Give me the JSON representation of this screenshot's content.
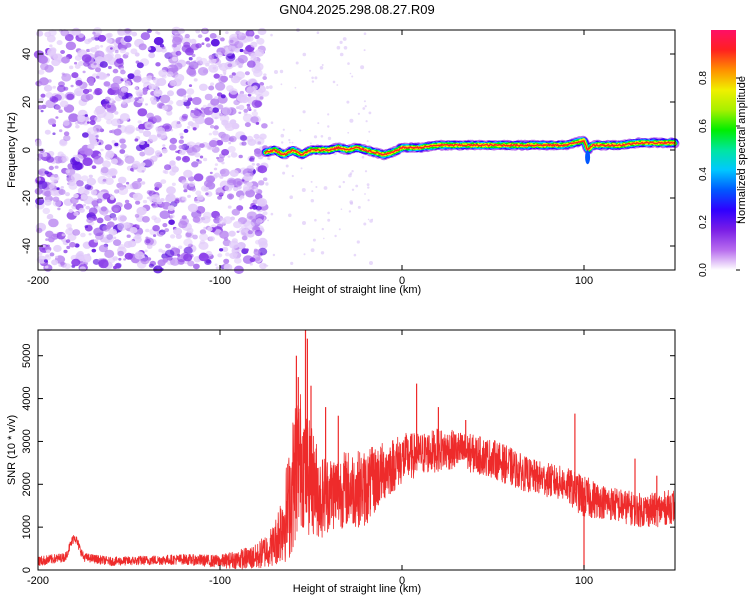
{
  "figure": {
    "title": "GN04.2025.298.08.27.R09"
  },
  "chart_data": [
    {
      "type": "heatmap",
      "name": "spectrogram",
      "xlabel": "Height of straight line (km)",
      "ylabel": "Frequency (Hz)",
      "xlim": [
        -200,
        150
      ],
      "ylim": [
        -50,
        50
      ],
      "xticks": [
        -200,
        -100,
        0,
        100
      ],
      "yticks": [
        -40,
        -20,
        0,
        20,
        40
      ],
      "noise_region_x": [
        -200,
        -75
      ],
      "ridge": {
        "x": [
          -75,
          -70,
          -65,
          -60,
          -55,
          -50,
          -45,
          -40,
          -35,
          -30,
          -25,
          -20,
          -15,
          -10,
          -5,
          0,
          10,
          20,
          40,
          60,
          80,
          90,
          95,
          100,
          102,
          105,
          110,
          120,
          130,
          140,
          150
        ],
        "freq": [
          -1,
          0,
          -2,
          0,
          -2,
          0,
          0,
          0,
          1,
          0,
          1,
          0,
          -1,
          -2,
          -1,
          1,
          1,
          2,
          2,
          2,
          2,
          2,
          3,
          4,
          0,
          2,
          2,
          2,
          3,
          3,
          3
        ]
      },
      "colorbar": {
        "label": "Normalized spectral amplitude",
        "range": [
          0.0,
          1.0
        ],
        "ticks": [
          "0.0",
          "0.2",
          "0.4",
          "0.6",
          "0.8"
        ],
        "tick_values": [
          0.0,
          0.2,
          0.4,
          0.6,
          0.8
        ],
        "colors": [
          "#ffffff",
          "#b86dee",
          "#7a1ee6",
          "#2f00ff",
          "#0058ff",
          "#00c8ff",
          "#00e6a0",
          "#00ee00",
          "#a8f000",
          "#f0f000",
          "#ff9000",
          "#ff2020",
          "#ff0f66"
        ]
      }
    },
    {
      "type": "line",
      "name": "snr",
      "xlabel": "Height of straight line (km)",
      "ylabel": "SNR (10 * v/v)",
      "xlim": [
        -200,
        150
      ],
      "ylim": [
        0,
        5600
      ],
      "xticks": [
        -200,
        -100,
        0,
        100
      ],
      "yticks": [
        0,
        1000,
        2000,
        3000,
        4000,
        5000
      ],
      "line_color": "#ee2b2b",
      "envelope": {
        "x": [
          -200,
          -185,
          -180,
          -175,
          -160,
          -120,
          -100,
          -80,
          -70,
          -62,
          -58,
          -55,
          -52,
          -48,
          -45,
          -40,
          -30,
          -20,
          -10,
          0,
          10,
          20,
          30,
          40,
          50,
          60,
          70,
          80,
          90,
          100,
          110,
          120,
          130,
          140,
          150
        ],
        "mid": [
          200,
          300,
          800,
          300,
          200,
          250,
          200,
          300,
          600,
          1500,
          2500,
          2600,
          2200,
          2000,
          1700,
          1800,
          1900,
          1900,
          2300,
          2600,
          2700,
          2800,
          2800,
          2700,
          2600,
          2400,
          2200,
          2100,
          2000,
          1700,
          1600,
          1500,
          1400,
          1400,
          1500
        ],
        "amp": [
          120,
          100,
          120,
          100,
          100,
          120,
          150,
          300,
          500,
          1300,
          1800,
          1600,
          1400,
          1200,
          1000,
          900,
          900,
          900,
          700,
          600,
          500,
          500,
          450,
          450,
          450,
          450,
          400,
          400,
          400,
          500,
          400,
          400,
          400,
          400,
          400
        ]
      },
      "spikes": [
        {
          "x": -58,
          "y": 5000
        },
        {
          "x": -57,
          "y": 4500
        },
        {
          "x": -53,
          "y": 5600
        },
        {
          "x": -52,
          "y": 5400
        },
        {
          "x": -50,
          "y": 4300
        },
        {
          "x": -42,
          "y": 3800
        },
        {
          "x": -35,
          "y": 3600
        },
        {
          "x": 8,
          "y": 4350
        },
        {
          "x": 20,
          "y": 3800
        },
        {
          "x": 35,
          "y": 3500
        },
        {
          "x": 95,
          "y": 3650
        },
        {
          "x": 128,
          "y": 2600
        },
        {
          "x": 140,
          "y": 2200
        }
      ]
    }
  ]
}
